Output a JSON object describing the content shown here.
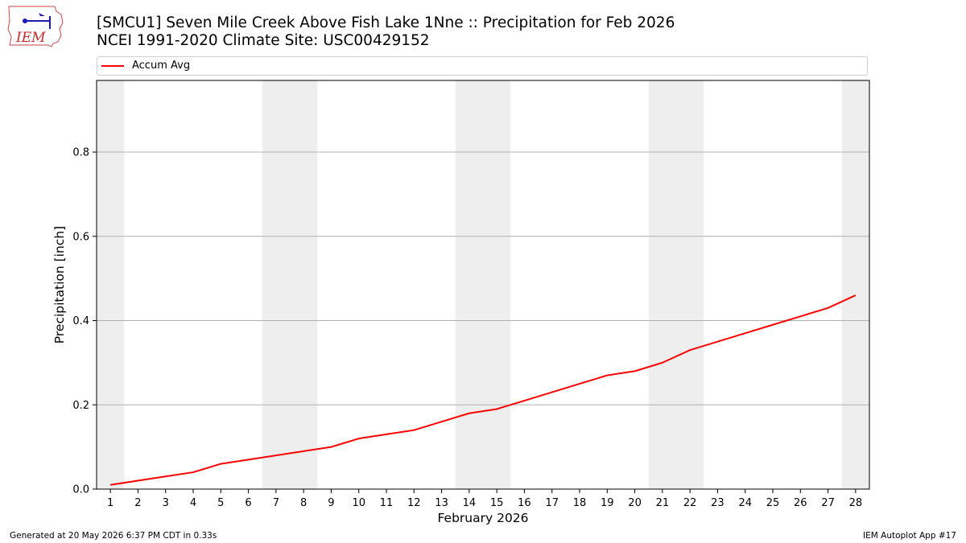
{
  "logo": {
    "text": "IEM"
  },
  "header": {
    "title_line1": "[SMCU1] Seven Mile Creek Above Fish Lake 1Nne :: Precipitation for Feb 2026",
    "title_line2": "NCEI 1991-2020 Climate Site: USC00429152"
  },
  "footer": {
    "left": "Generated at 20 May 2026 6:37 PM CDT in 0.33s",
    "right": "IEM Autoplot App #17"
  },
  "colors": {
    "line": "#ff0000",
    "weekend_band": "#eeeeee",
    "grid": "#b0b0b0"
  },
  "chart_data": {
    "type": "line",
    "xlabel": "February 2026",
    "ylabel": "Precipitation [inch]",
    "x": [
      1,
      2,
      3,
      4,
      5,
      6,
      7,
      8,
      9,
      10,
      11,
      12,
      13,
      14,
      15,
      16,
      17,
      18,
      19,
      20,
      21,
      22,
      23,
      24,
      25,
      26,
      27,
      28
    ],
    "series": [
      {
        "name": "Accum Avg",
        "color": "#ff0000",
        "values": [
          0.01,
          0.02,
          0.03,
          0.04,
          0.06,
          0.07,
          0.08,
          0.09,
          0.1,
          0.12,
          0.13,
          0.14,
          0.16,
          0.18,
          0.19,
          0.21,
          0.23,
          0.25,
          0.27,
          0.28,
          0.3,
          0.33,
          0.35,
          0.37,
          0.39,
          0.41,
          0.43,
          0.46
        ]
      }
    ],
    "xlim": [
      0.5,
      28.5
    ],
    "ylim": [
      0,
      0.97
    ],
    "yticks": [
      0.0,
      0.2,
      0.4,
      0.6,
      0.8
    ],
    "ytick_labels": [
      "0.0",
      "0.2",
      "0.4",
      "0.6",
      "0.8"
    ],
    "weekend_bands": [
      [
        0.5,
        1.5
      ],
      [
        6.5,
        8.5
      ],
      [
        13.5,
        15.5
      ],
      [
        20.5,
        22.5
      ],
      [
        27.5,
        28.5
      ]
    ],
    "grid": "y",
    "legend": "top"
  }
}
